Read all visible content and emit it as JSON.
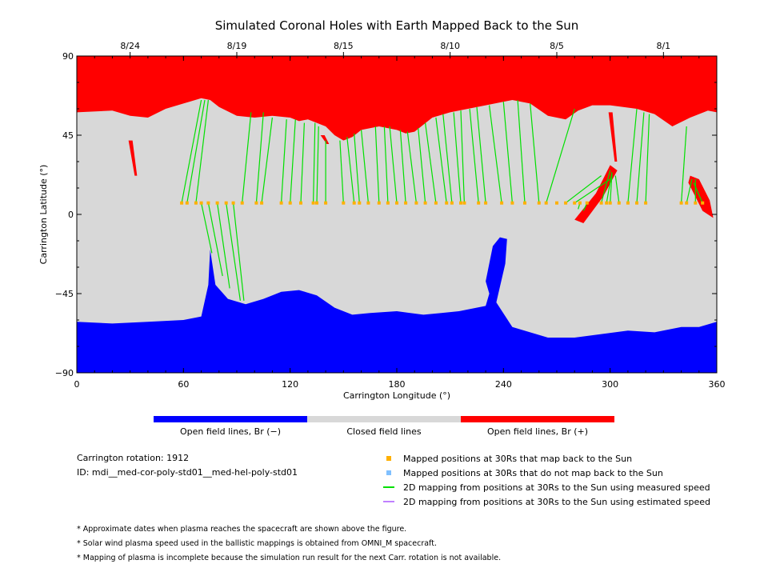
{
  "chart_data": {
    "type": "heatmap",
    "title": "Simulated Coronal Holes with Earth Mapped Back to the Sun",
    "xlabel": "Carrington Longitude (°)",
    "ylabel": "Carrington Latitude (°)",
    "xlim": [
      0,
      360
    ],
    "ylim": [
      -90,
      90
    ],
    "x_ticks": [
      "0",
      "60",
      "120",
      "180",
      "240",
      "300",
      "360"
    ],
    "y_ticks": [
      "-90",
      "-45",
      "0",
      "45",
      "90"
    ],
    "top_axis_dates": [
      {
        "label": "8/24",
        "lon": 30
      },
      {
        "label": "8/19",
        "lon": 90
      },
      {
        "label": "8/15",
        "lon": 150
      },
      {
        "label": "8/10",
        "lon": 210
      },
      {
        "label": "8/5",
        "lon": 270
      },
      {
        "label": "8/1",
        "lon": 330
      }
    ],
    "colors": {
      "open_negative": "#0000ff",
      "closed": "#d8d8d8",
      "open_positive": "#ff0000",
      "mapped_point": "#ffb000",
      "unmapped_point": "#80c0ff",
      "measured_speed_line": "#00e000",
      "estimated_speed_line": "#c080ff"
    },
    "north_hole_boundary": [
      [
        0,
        58
      ],
      [
        20,
        59
      ],
      [
        30,
        56
      ],
      [
        40,
        55
      ],
      [
        50,
        60
      ],
      [
        60,
        63
      ],
      [
        70,
        66
      ],
      [
        75,
        65
      ],
      [
        80,
        61
      ],
      [
        90,
        56
      ],
      [
        100,
        55
      ],
      [
        110,
        56
      ],
      [
        120,
        55
      ],
      [
        125,
        53
      ],
      [
        130,
        54
      ],
      [
        140,
        50
      ],
      [
        145,
        45
      ],
      [
        150,
        42
      ],
      [
        155,
        44
      ],
      [
        160,
        48
      ],
      [
        170,
        50
      ],
      [
        180,
        48
      ],
      [
        185,
        46
      ],
      [
        190,
        47
      ],
      [
        200,
        55
      ],
      [
        210,
        58
      ],
      [
        230,
        62
      ],
      [
        245,
        65
      ],
      [
        255,
        63
      ],
      [
        265,
        56
      ],
      [
        275,
        54
      ],
      [
        282,
        59
      ],
      [
        290,
        62
      ],
      [
        300,
        62
      ],
      [
        315,
        60
      ],
      [
        325,
        57
      ],
      [
        335,
        50
      ],
      [
        345,
        55
      ],
      [
        355,
        59
      ],
      [
        360,
        58
      ]
    ],
    "north_tongues": [
      {
        "lon": [
          30,
          33
        ],
        "lat": [
          42,
          22
        ]
      },
      {
        "lon": [
          300,
          303
        ],
        "lat": [
          58,
          30
        ]
      },
      {
        "lon": [
          138,
          141
        ],
        "lat": [
          45,
          40
        ]
      }
    ],
    "positive_patches": [
      [
        [
          285,
          -5
        ],
        [
          296,
          10
        ],
        [
          304,
          25
        ],
        [
          300,
          28
        ],
        [
          292,
          12
        ],
        [
          280,
          -3
        ]
      ],
      [
        [
          345,
          22
        ],
        [
          350,
          20
        ],
        [
          356,
          8
        ],
        [
          358,
          -2
        ],
        [
          352,
          2
        ],
        [
          344,
          18
        ]
      ]
    ],
    "south_hole_boundary": [
      [
        0,
        -61
      ],
      [
        20,
        -62
      ],
      [
        40,
        -61
      ],
      [
        60,
        -60
      ],
      [
        70,
        -58
      ],
      [
        74,
        -40
      ],
      [
        75,
        -20
      ],
      [
        78,
        -40
      ],
      [
        85,
        -48
      ],
      [
        95,
        -51
      ],
      [
        105,
        -48
      ],
      [
        115,
        -44
      ],
      [
        125,
        -43
      ],
      [
        135,
        -46
      ],
      [
        145,
        -53
      ],
      [
        155,
        -57
      ],
      [
        165,
        -56
      ],
      [
        180,
        -55
      ],
      [
        195,
        -57
      ],
      [
        205,
        -56
      ],
      [
        215,
        -55
      ],
      [
        230,
        -52
      ],
      [
        232,
        -45
      ],
      [
        230,
        -38
      ],
      [
        234,
        -18
      ],
      [
        238,
        -13
      ],
      [
        242,
        -14
      ],
      [
        241,
        -28
      ],
      [
        236,
        -50
      ],
      [
        245,
        -64
      ],
      [
        265,
        -70
      ],
      [
        280,
        -70
      ],
      [
        295,
        -68
      ],
      [
        310,
        -66
      ],
      [
        325,
        -67
      ],
      [
        340,
        -64
      ],
      [
        350,
        -64
      ],
      [
        360,
        -61
      ]
    ],
    "mapped_positions": [
      59,
      62,
      67,
      70,
      74,
      79,
      84,
      88,
      93,
      101,
      104,
      115,
      120,
      126,
      133,
      135,
      140,
      150,
      156,
      159,
      164,
      170,
      175,
      180,
      185,
      191,
      196,
      202,
      208,
      211,
      216,
      218,
      226,
      230,
      239,
      245,
      252,
      260,
      264,
      270,
      275,
      280,
      283,
      287,
      295,
      298,
      300,
      305,
      310,
      315,
      320,
      340,
      343,
      348,
      352
    ],
    "mapped_lat": 6.5,
    "field_lines": [
      [
        59,
        6.5,
        70,
        65
      ],
      [
        62,
        6.5,
        72,
        65
      ],
      [
        67,
        6.5,
        74,
        65
      ],
      [
        70,
        6.5,
        76,
        -22
      ],
      [
        74,
        6.5,
        82,
        -35
      ],
      [
        79,
        6.5,
        86,
        -42
      ],
      [
        84,
        6.5,
        92,
        -49
      ],
      [
        88,
        6.5,
        94,
        -49
      ],
      [
        93,
        6.5,
        98,
        58
      ],
      [
        101,
        6.5,
        105,
        58
      ],
      [
        104,
        6.5,
        110,
        55
      ],
      [
        115,
        6.5,
        118,
        54
      ],
      [
        120,
        6.5,
        123,
        54
      ],
      [
        126,
        6.5,
        128,
        52
      ],
      [
        133,
        6.5,
        134,
        52
      ],
      [
        135,
        6.5,
        136,
        50
      ],
      [
        140,
        6.5,
        140,
        42
      ],
      [
        150,
        6.5,
        148,
        42
      ],
      [
        156,
        6.5,
        152,
        44
      ],
      [
        159,
        6.5,
        156,
        46
      ],
      [
        164,
        6.5,
        160,
        48
      ],
      [
        170,
        6.5,
        168,
        50
      ],
      [
        175,
        6.5,
        173,
        50
      ],
      [
        180,
        6.5,
        176,
        50
      ],
      [
        185,
        6.5,
        182,
        48
      ],
      [
        191,
        6.5,
        186,
        47
      ],
      [
        196,
        6.5,
        192,
        49
      ],
      [
        202,
        6.5,
        196,
        52
      ],
      [
        208,
        6.5,
        202,
        55
      ],
      [
        211,
        6.5,
        206,
        57
      ],
      [
        216,
        6.5,
        212,
        58
      ],
      [
        218,
        6.5,
        216,
        59
      ],
      [
        226,
        6.5,
        221,
        60
      ],
      [
        230,
        6.5,
        225,
        61
      ],
      [
        239,
        6.5,
        232,
        62
      ],
      [
        245,
        6.5,
        240,
        64
      ],
      [
        252,
        6.5,
        248,
        65
      ],
      [
        260,
        6.5,
        255,
        63
      ],
      [
        264,
        6.5,
        280,
        60
      ],
      [
        275,
        6.5,
        295,
        22
      ],
      [
        280,
        6.5,
        300,
        20
      ],
      [
        283,
        6.5,
        282,
        3
      ],
      [
        287,
        6.5,
        285,
        2
      ],
      [
        295,
        6.5,
        300,
        25
      ],
      [
        298,
        6.5,
        301,
        24
      ],
      [
        300,
        6.5,
        301,
        23
      ],
      [
        305,
        6.5,
        303,
        22
      ],
      [
        310,
        6.5,
        315,
        60
      ],
      [
        315,
        6.5,
        319,
        58
      ],
      [
        320,
        6.5,
        322,
        57
      ],
      [
        340,
        6.5,
        343,
        50
      ],
      [
        343,
        6.5,
        346,
        20
      ],
      [
        348,
        6.5,
        348,
        20
      ],
      [
        352,
        6.5,
        347,
        18
      ]
    ]
  },
  "colorbar": {
    "negative_label": "Open field lines, Br (−)",
    "closed_label": "Closed field lines",
    "positive_label": "Open field lines, Br (+)"
  },
  "info": {
    "rotation": "Carrington rotation: 1912",
    "id": "ID: mdi__med-cor-poly-std01__med-hel-poly-std01"
  },
  "legend": {
    "mapped": "Mapped positions at 30Rs that map back to the Sun",
    "unmapped": "Mapped positions at 30Rs that do not map back to the Sun",
    "measured": "2D mapping from positions at 30Rs to the Sun using measured speed",
    "estimated": "2D mapping from positions at 30Rs to the Sun using estimated speed"
  },
  "footnotes": [
    "* Approximate dates when plasma reaches the spacecraft are shown above the figure.",
    "* Solar wind plasma speed used in the ballistic mappings is obtained from OMNI_M spacecraft.",
    "* Mapping of plasma is incomplete because the simulation run result for the next Carr. rotation is not available."
  ]
}
